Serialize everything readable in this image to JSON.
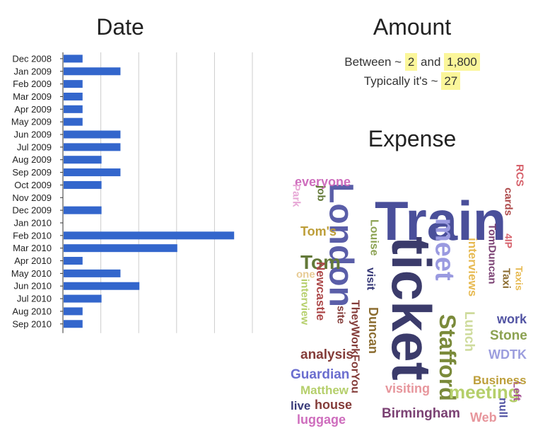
{
  "panels": {
    "date_title": "Date",
    "amount_title": "Amount",
    "expense_title": "Expense"
  },
  "amount": {
    "between_prefix": "Between ~",
    "min": "2",
    "and": "and",
    "max": "1,800",
    "typical_prefix": "Typically it's ~",
    "typical": "27"
  },
  "chart_data": {
    "type": "bar",
    "orientation": "horizontal",
    "title": "Date",
    "categories": [
      "Dec 2008",
      "Jan 2009",
      "Feb 2009",
      "Mar 2009",
      "Apr 2009",
      "May 2009",
      "Jun 2009",
      "Jul 2009",
      "Aug 2009",
      "Sep 2009",
      "Oct 2009",
      "Nov 2009",
      "Dec 2009",
      "Jan 2010",
      "Feb 2010",
      "Mar 2010",
      "Apr 2010",
      "May 2010",
      "Jun 2010",
      "Jul 2010",
      "Aug 2010",
      "Sep 2010"
    ],
    "values": [
      1,
      3,
      1,
      1,
      1,
      1,
      3,
      3,
      2,
      3,
      2,
      0,
      2,
      0,
      9,
      6,
      1,
      3,
      4,
      2,
      1,
      1
    ],
    "xlim": [
      0,
      10
    ],
    "grid": true,
    "bar_color": "#3366cc"
  },
  "wordcloud": {
    "words": [
      {
        "text": "Train",
        "color": "#4a4f9a"
      },
      {
        "text": "ticket",
        "color": "#3b3b6b"
      },
      {
        "text": "London",
        "color": "#5a5ea8"
      },
      {
        "text": "meet",
        "color": "#9a9ae0"
      },
      {
        "text": "Stafford",
        "color": "#7a8a3a"
      },
      {
        "text": "meeting",
        "color": "#b5cf6b"
      },
      {
        "text": "Tom",
        "color": "#637939"
      },
      {
        "text": "everyone",
        "color": "#ce6dbd"
      },
      {
        "text": "Park",
        "color": "#e7a7d6"
      },
      {
        "text": "job",
        "color": "#637939"
      },
      {
        "text": "Tom's",
        "color": "#bd9e39"
      },
      {
        "text": "one",
        "color": "#e7cb94"
      },
      {
        "text": "interview",
        "color": "#b5cf6b"
      },
      {
        "text": "Newcastle",
        "color": "#ad494a"
      },
      {
        "text": "site",
        "color": "#843c39"
      },
      {
        "text": "visit",
        "color": "#393b79"
      },
      {
        "text": "Louise",
        "color": "#8ca252"
      },
      {
        "text": "TheyWorkForYou",
        "color": "#843c39"
      },
      {
        "text": "Duncan",
        "color": "#8c6d31"
      },
      {
        "text": "analysis",
        "color": "#843c39"
      },
      {
        "text": "Guardian",
        "color": "#6b6ecf"
      },
      {
        "text": "Matthew",
        "color": "#b5cf6b"
      },
      {
        "text": "live",
        "color": "#393b79"
      },
      {
        "text": "house",
        "color": "#843c39"
      },
      {
        "text": "luggage",
        "color": "#ce6dbd"
      },
      {
        "text": "visiting",
        "color": "#e7969c"
      },
      {
        "text": "Birmingham",
        "color": "#7b4173"
      },
      {
        "text": "Web",
        "color": "#e7969c"
      },
      {
        "text": "null",
        "color": "#5254a3"
      },
      {
        "text": "Left",
        "color": "#a55194"
      },
      {
        "text": "Business",
        "color": "#bd9e39"
      },
      {
        "text": "WDTK",
        "color": "#9c9ede"
      },
      {
        "text": "Stone",
        "color": "#8ca252"
      },
      {
        "text": "work",
        "color": "#5254a3"
      },
      {
        "text": "Lunch",
        "color": "#cedb9c"
      },
      {
        "text": "interviews",
        "color": "#e7ba52"
      },
      {
        "text": "TomDuncan",
        "color": "#7b4173"
      },
      {
        "text": "4IP",
        "color": "#d6616b"
      },
      {
        "text": "Taxi",
        "color": "#8c6d31"
      },
      {
        "text": "Taxis",
        "color": "#e7ba52"
      },
      {
        "text": "cards",
        "color": "#ad494a"
      },
      {
        "text": "RCS",
        "color": "#d6616b"
      }
    ]
  }
}
